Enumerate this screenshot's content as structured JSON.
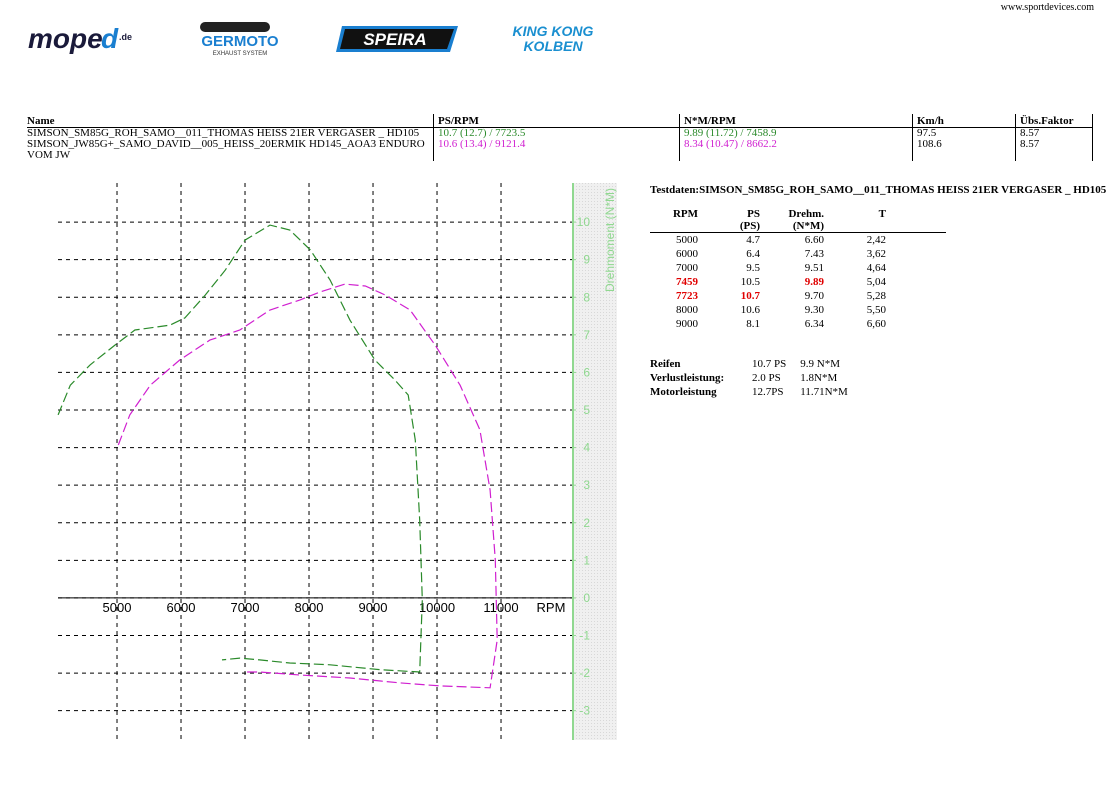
{
  "header": {
    "site": "www.sportdevices.com",
    "logos": {
      "moped_main": "mope",
      "moped_d": "d",
      "moped_tld": ".de",
      "germoto": "GERMOTO",
      "germoto_sub": "EXHAUST SYSTEM",
      "speira": "SPEIRA",
      "kingkong_1": "KING KONG",
      "kingkong_2": "KOLBEN"
    }
  },
  "table": {
    "columns": [
      "Name",
      "PS/RPM",
      "N*M/RPM",
      "Km/h",
      "Übs.Faktor"
    ],
    "rows": [
      [
        "SIMSON_SM85G_ROH_SAMO__011_THOMAS HEISS 21ER VERGASER _ HD105",
        "10.7 (12.7) / 7723.5",
        "9.89 (11.72) / 7458.9",
        "97.5",
        "8.57"
      ],
      [
        "SIMSON_JW85G+_SAMO_DAVID__005_HEISS_20ERMIK HD145_AOA3 ENDURO VOM JW",
        "10.6 (13.4) / 9121.4",
        "8.34 (10.47) / 8662.2",
        "108.6",
        "8.57"
      ]
    ]
  },
  "testdata": {
    "title": "Testdaten:SIMSON_SM85G_ROH_SAMO__011_THOMAS HEISS 21ER VERGASER _ HD105",
    "columns": [
      "RPM",
      "PS",
      "(PS)",
      "Drehm.",
      "(N*M)",
      "T"
    ],
    "rows": [
      [
        "5000",
        "4.7",
        "6.60",
        "2,42"
      ],
      [
        "6000",
        "6.4",
        "7.43",
        "3,62"
      ],
      [
        "7000",
        "9.5",
        "9.51",
        "4,64"
      ],
      [
        "7459",
        "10.5",
        "9.89",
        "5,04"
      ],
      [
        "7723",
        "10.7",
        "9.70",
        "5,28"
      ],
      [
        "8000",
        "10.6",
        "9.30",
        "5,50"
      ],
      [
        "9000",
        "8.1",
        "6.34",
        "6,60"
      ]
    ],
    "summary": [
      [
        "Reifen",
        "10.7 PS",
        "9.9 N*M"
      ],
      [
        "Verlustleistung:",
        "2.0 PS",
        "1.8N*M"
      ],
      [
        "Motorleistung",
        "12.7PS",
        "11.71N*M"
      ]
    ]
  },
  "chart_data": {
    "type": "line",
    "x_label": "RPM",
    "y_label": "Drehmoment (N*M)",
    "xlim": [
      4078,
      12109
    ],
    "ylim": [
      -3.78,
      11.04
    ],
    "xticks": [
      5000,
      6000,
      7000,
      8000,
      9000,
      10000,
      11000
    ],
    "yticks": [
      -3,
      -2,
      -1,
      0,
      1,
      2,
      3,
      4,
      5,
      6,
      7,
      8,
      9,
      10
    ],
    "grid": true,
    "axis_color": "#90d890",
    "series": [
      {
        "color": "#2a8a2a",
        "x": [
          4080,
          4270,
          4580,
          4970,
          5280,
          5830,
          6060,
          6380,
          6690,
          7000,
          7390,
          7700,
          8020,
          8330,
          8640,
          9030,
          9340,
          9550,
          9660,
          9730,
          9770,
          9730,
          9110,
          8330,
          7700,
          7230,
          6920,
          6640
        ],
        "values": [
          4.87,
          5.66,
          6.2,
          6.73,
          7.13,
          7.26,
          7.45,
          8.06,
          8.72,
          9.52,
          9.92,
          9.79,
          9.26,
          8.46,
          7.39,
          6.33,
          5.8,
          5.4,
          4.2,
          2.07,
          -0.05,
          -1.97,
          -1.91,
          -1.78,
          -1.73,
          -1.65,
          -1.6,
          -1.65
        ]
      },
      {
        "color": "#d020d0",
        "x": [
          5020,
          5200,
          5520,
          5980,
          6450,
          6920,
          7390,
          7860,
          8170,
          8560,
          8880,
          9190,
          9580,
          9970,
          10360,
          10670,
          10830,
          10910,
          10940,
          10830,
          10050,
          9420,
          8640,
          7860,
          7230,
          7000
        ],
        "values": [
          4.07,
          4.87,
          5.66,
          6.33,
          6.86,
          7.13,
          7.66,
          7.93,
          8.14,
          8.35,
          8.3,
          8.06,
          7.66,
          6.73,
          5.66,
          4.47,
          2.87,
          1.01,
          -1.12,
          -2.39,
          -2.34,
          -2.26,
          -2.13,
          -2.05,
          -1.97,
          -1.97
        ]
      }
    ]
  }
}
